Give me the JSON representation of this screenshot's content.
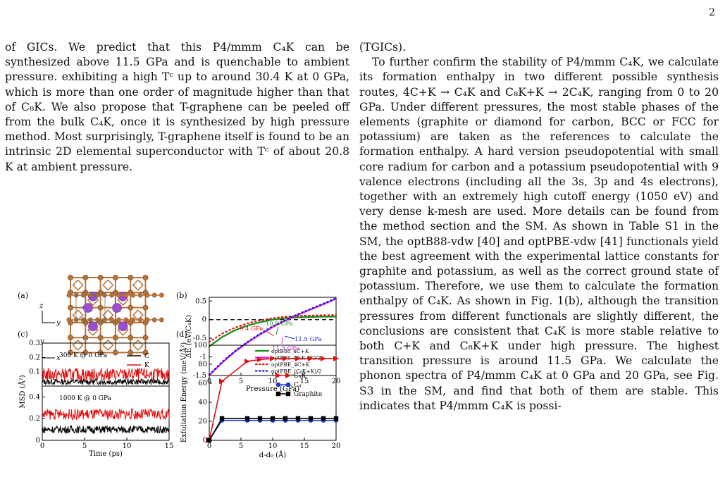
{
  "page": {
    "number": "2"
  },
  "left_text": {
    "paragraph": "of GICs. We predict that this P4/mmm C₄K can be synthesized above 11.5 GPa and is quenchable to ambient pressure. exhibiting a high Tᶜ up to around 30.4 K at 0 GPa, which is more than one order of magnitude higher than that of C₈K. We also propose that T-graphene can be peeled off from the bulk C₄K, once it is synthesized by high pressure method. Most surprisingly, T-graphene itself is found to be an intrinsic 2D elemental superconductor with Tᶜ of about 20.8 K at ambient pressure."
  },
  "right_text": {
    "first_line": "(TGICs).",
    "paragraph": "To further confirm the stability of P4/mmm C₄K, we calculate its formation enthalpy in two different possible synthesis routes, 4C+K → C₄K and C₈K+K → 2C₄K, ranging from 0 to 20 GPa. Under different pressures, the most stable phases of the elements (graphite or diamond for carbon, BCC or FCC for potassium) are taken as the references to calculate the formation enthalpy. A hard version pseudopotential with small core radium for carbon and a potassium pseudopotential with 9 valence electrons (including all the 3s, 3p and 4s electrons), together with an extremely high cutoff energy (1050 eV) and very dense k-mesh are used. More details can be found from the method section and the SM. As shown in Table S1 in the SM, the optB88-vdw [40] and optPBE-vdw [41] functionals yield the best agreement with the experimental lattice constants for graphite and potassium, as well as the correct ground state of potassium. Therefore, we use them to calculate the formation enthalpy of C₄K. As shown in Fig. 1(b), although the transition pressures from different functionals are slightly different, the conclusions are consistent that C₄K is more stable relative to both C+K and C₈K+K under high pressure. The highest transition pressure is around 11.5 GPa. We calculate the phonon spectra of P4/mmm C₄K at 0 GPa and 20 GPa, see Fig. S3 in the SM, and find that both of them are stable. This indicates that P4/mmm C₄K is possi-"
  },
  "figure": {
    "panel_a": {
      "label": "(a)",
      "axis_y": "y",
      "axis_x": "x",
      "axis_z": "z",
      "axis_y2": "y",
      "colors": {
        "carbon": "#b8733a",
        "potassium": "#9b4fd0"
      }
    },
    "panel_b": {
      "label": "(b)",
      "ann_94": "9.4 GPa",
      "ann_100": "10.0 GPa",
      "ann_115": "11.5 GPa",
      "ann_113": "11.3 GPa",
      "xtick_0": "0",
      "xtick_5": "5",
      "xtick_10": "10",
      "xtick_15": "15",
      "xtick_20": "20",
      "ytick_05": "0.5",
      "ytick_0": "0",
      "ytick_m05": "-0.5",
      "ytick_m1": "-1",
      "ytick_m15": "-1.5"
    },
    "panel_c": {
      "label": "(c)",
      "top_label": "300 K @ 0 GPa",
      "bottom_label": "1000 K @ 0 GPa",
      "legend_c": "C",
      "legend_k": "K",
      "xtick_0": "0",
      "xtick_5": "5",
      "xtick_10": "10",
      "xtick_15": "15",
      "ytick_top_03": "0.3",
      "ytick_top_02": "0.2",
      "ytick_top_01": "0.1",
      "ytick_bot_04": "0.4",
      "ytick_bot_02": "0.2",
      "ytick_bot_0": "0"
    },
    "panel_d": {
      "label": "(d)",
      "xtick_0": "0",
      "xtick_5": "5",
      "xtick_10": "10",
      "xtick_15": "15",
      "xtick_20": "20",
      "ytick_0": "0",
      "ytick_20": "20",
      "ytick_40": "40",
      "ytick_60": "60",
      "ytick_80": "80",
      "ytick_100": "100"
    }
  },
  "chart_data": [
    {
      "type": "line",
      "panel": "(b)",
      "xlabel": "Pressure (GPa)",
      "ylabel": "ΔE (eV/C₄K)",
      "xlim": [
        0,
        20
      ],
      "ylim": [
        -1.5,
        0.6
      ],
      "series": [
        {
          "name": "optB88_4C+K",
          "color": "#1a8a1a",
          "style": "solid",
          "x": [
            0,
            2,
            4,
            6,
            8,
            10,
            12,
            14,
            16,
            18,
            20
          ],
          "y": [
            -0.72,
            -0.47,
            -0.29,
            -0.16,
            -0.07,
            0.0,
            0.04,
            0.06,
            0.07,
            0.08,
            0.08
          ]
        },
        {
          "name": "optB88_(C₈K+K)/2",
          "color": "#e020e0",
          "style": "solid",
          "x": [
            0,
            2,
            4,
            6,
            8,
            10,
            12,
            14,
            16,
            18,
            20
          ],
          "y": [
            -1.5,
            -1.16,
            -0.87,
            -0.62,
            -0.4,
            -0.2,
            -0.03,
            0.13,
            0.27,
            0.41,
            0.56
          ]
        },
        {
          "name": "optPBE_4C+K",
          "color": "#e01010",
          "style": "dotted",
          "x": [
            0,
            2,
            4,
            6,
            8,
            10,
            12,
            14,
            16,
            18,
            20
          ],
          "y": [
            -0.6,
            -0.38,
            -0.22,
            -0.1,
            -0.02,
            0.04,
            0.08,
            0.1,
            0.11,
            0.12,
            0.12
          ]
        },
        {
          "name": "optPBE_(C₈K+K)/2",
          "color": "#1a1ad0",
          "style": "dotted",
          "x": [
            0,
            2,
            4,
            6,
            8,
            10,
            12,
            14,
            16,
            18,
            20
          ],
          "y": [
            -1.48,
            -1.14,
            -0.85,
            -0.6,
            -0.38,
            -0.18,
            -0.01,
            0.15,
            0.29,
            0.43,
            0.58
          ]
        }
      ]
    },
    {
      "type": "line",
      "panel": "(c)",
      "xlabel": "Time (ps)",
      "ylabel": "MSD (Å²)",
      "xlim": [
        0,
        15
      ],
      "subplots": [
        {
          "label": "300 K @ 0 GPa",
          "ylim": [
            0,
            0.3
          ],
          "series": [
            {
              "name": "C",
              "color": "#000000",
              "mean": 0.03,
              "noise": 0.02
            },
            {
              "name": "K",
              "color": "#e01010",
              "mean": 0.08,
              "noise": 0.045
            }
          ]
        },
        {
          "label": "1000 K @ 0 GPa",
          "ylim": [
            0,
            0.5
          ],
          "series": [
            {
              "name": "C",
              "color": "#000000",
              "mean": 0.1,
              "noise": 0.035
            },
            {
              "name": "K",
              "color": "#e01010",
              "mean": 0.24,
              "noise": 0.05
            }
          ]
        }
      ]
    },
    {
      "type": "line",
      "panel": "(d)",
      "xlabel": "d-d₀ (Å)",
      "ylabel": "Exfoliation Energy (meV/Å²)",
      "xlim": [
        0,
        20
      ],
      "ylim": [
        0,
        100
      ],
      "series": [
        {
          "name": "C₄K",
          "color": "#e01010",
          "marker": "triangle",
          "x": [
            0,
            2,
            6,
            8,
            10,
            12,
            14,
            16,
            18,
            20
          ],
          "y": [
            0,
            62,
            83,
            85,
            86,
            86,
            86,
            86,
            86,
            86
          ]
        },
        {
          "name": "C₄",
          "color": "#1a3ad8",
          "marker": "circle",
          "x": [
            0,
            2,
            6,
            8,
            10,
            12,
            14,
            16,
            18,
            20
          ],
          "y": [
            0,
            21,
            21,
            21,
            21,
            21,
            21,
            21,
            21,
            21
          ]
        },
        {
          "name": "Graphite",
          "color": "#000000",
          "marker": "square",
          "x": [
            0,
            2,
            6,
            8,
            10,
            12,
            14,
            16,
            18,
            20
          ],
          "y": [
            0,
            23,
            23,
            23,
            23,
            23,
            23,
            23,
            23,
            23
          ]
        }
      ]
    }
  ]
}
